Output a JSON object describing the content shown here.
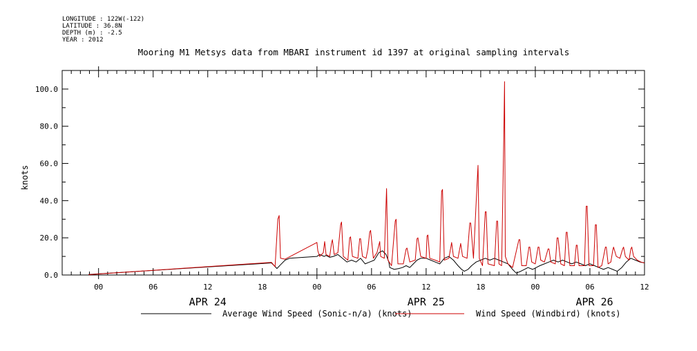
{
  "header": {
    "lines": [
      "LONGITUDE : 122W(-122)",
      "LATITUDE : 36.8N",
      "DEPTH (m) : -2.5",
      "YEAR : 2012"
    ],
    "title": "Mooring M1 Metsys data from MBARI instrument id 1397 at original sampling intervals"
  },
  "chart_data": {
    "type": "line",
    "title": "Mooring M1 Metsys data from MBARI instrument id 1397 at original sampling intervals",
    "xlabel": "",
    "ylabel": "knots",
    "x_unit": "hours from 00 APR 24 2012",
    "xlim": [
      -4,
      60
    ],
    "ylim": [
      0,
      110
    ],
    "y_ticks": [
      0.0,
      20.0,
      40.0,
      60.0,
      80.0,
      100.0
    ],
    "y_tick_labels": [
      "0.0",
      "20.0",
      "40.0",
      "60.0",
      "80.0",
      "100.0"
    ],
    "x_ticks": [
      0,
      6,
      12,
      18,
      24,
      30,
      36,
      42,
      48,
      54,
      60
    ],
    "x_tick_labels": [
      "00",
      "06",
      "12",
      "18",
      "00",
      "06",
      "12",
      "18",
      "00",
      "06",
      "12"
    ],
    "date_labels": [
      {
        "x": 12,
        "label": "APR 24"
      },
      {
        "x": 36,
        "label": "APR 25"
      },
      {
        "x": 54.5,
        "label": "APR 26"
      }
    ],
    "legend_position": "bottom",
    "series": [
      {
        "name": "Average Wind Speed (Sonic-n/a) (knots)",
        "color": "#000000",
        "points": [
          [
            -1.1,
            0.3
          ],
          [
            19,
            6.5
          ],
          [
            19.6,
            3.5
          ],
          [
            20,
            5.5
          ],
          [
            20.5,
            8
          ],
          [
            21,
            9
          ],
          [
            24,
            10
          ],
          [
            24.3,
            11
          ],
          [
            24.8,
            10
          ],
          [
            25,
            10.5
          ],
          [
            25.4,
            9.5
          ],
          [
            25.8,
            10
          ],
          [
            26.3,
            11
          ],
          [
            26.8,
            9
          ],
          [
            27.3,
            7
          ],
          [
            27.8,
            8
          ],
          [
            28.3,
            7
          ],
          [
            28.8,
            9
          ],
          [
            29.3,
            6
          ],
          [
            29.8,
            7
          ],
          [
            30.3,
            8
          ],
          [
            30.8,
            12
          ],
          [
            31.2,
            13
          ],
          [
            31.6,
            11
          ],
          [
            31.9,
            7
          ],
          [
            32,
            4
          ],
          [
            32.5,
            3
          ],
          [
            33,
            3.5
          ],
          [
            33.4,
            4
          ],
          [
            33.8,
            5
          ],
          [
            34.2,
            4
          ],
          [
            34.6,
            6
          ],
          [
            35,
            8
          ],
          [
            35.4,
            9
          ],
          [
            36,
            9
          ],
          [
            36.5,
            8
          ],
          [
            37,
            7
          ],
          [
            37.5,
            6
          ],
          [
            38,
            9
          ],
          [
            38.5,
            10
          ],
          [
            39,
            8
          ],
          [
            39.5,
            5
          ],
          [
            39.9,
            3
          ],
          [
            40.2,
            2
          ],
          [
            40.6,
            3
          ],
          [
            41,
            5
          ],
          [
            41.5,
            7
          ],
          [
            42,
            8
          ],
          [
            42.5,
            9
          ],
          [
            43,
            8
          ],
          [
            43.5,
            9
          ],
          [
            44,
            8
          ],
          [
            44.5,
            7
          ],
          [
            45,
            6
          ],
          [
            45.5,
            3
          ],
          [
            45.9,
            1
          ],
          [
            46.4,
            2
          ],
          [
            46.8,
            3
          ],
          [
            47.2,
            4
          ],
          [
            47.7,
            3
          ],
          [
            48.1,
            4
          ],
          [
            48.5,
            5
          ],
          [
            49,
            6
          ],
          [
            49.5,
            7
          ],
          [
            50,
            8
          ],
          [
            50.5,
            7
          ],
          [
            51,
            8
          ],
          [
            51.5,
            7
          ],
          [
            52,
            6
          ],
          [
            52.5,
            7
          ],
          [
            53,
            6
          ],
          [
            53.5,
            5
          ],
          [
            54,
            6
          ],
          [
            54.5,
            5
          ],
          [
            55,
            4
          ],
          [
            55.5,
            3
          ],
          [
            56,
            4
          ],
          [
            56.5,
            3
          ],
          [
            57,
            2
          ],
          [
            57.5,
            4
          ],
          [
            58,
            7
          ],
          [
            58.5,
            9
          ],
          [
            59,
            8
          ],
          [
            59.5,
            7
          ],
          [
            60,
            6.5
          ]
        ]
      },
      {
        "name": "Wind Speed (Windbird) (knots)",
        "color": "#cc0000",
        "points": [
          [
            -1.1,
            0.2
          ],
          [
            19,
            6.8
          ],
          [
            19.4,
            4.5
          ],
          [
            19.7,
            30
          ],
          [
            19.85,
            32
          ],
          [
            20,
            9
          ],
          [
            20.5,
            8.5
          ],
          [
            24,
            17.5
          ],
          [
            24.1,
            13
          ],
          [
            24.3,
            10
          ],
          [
            24.7,
            12
          ],
          [
            24.85,
            18
          ],
          [
            25,
            11
          ],
          [
            25.4,
            10
          ],
          [
            25.6,
            17
          ],
          [
            25.7,
            19
          ],
          [
            25.9,
            11
          ],
          [
            26.3,
            12
          ],
          [
            26.6,
            27
          ],
          [
            26.7,
            28.5
          ],
          [
            26.9,
            10
          ],
          [
            27.4,
            8
          ],
          [
            27.6,
            20
          ],
          [
            27.7,
            20.5
          ],
          [
            27.9,
            10
          ],
          [
            28.5,
            9
          ],
          [
            28.7,
            19.5
          ],
          [
            28.8,
            19.5
          ],
          [
            29,
            10
          ],
          [
            29.4,
            9
          ],
          [
            29.6,
            14
          ],
          [
            29.8,
            23
          ],
          [
            29.9,
            24
          ],
          [
            30.2,
            9
          ],
          [
            30.6,
            12
          ],
          [
            30.9,
            18
          ],
          [
            31,
            10
          ],
          [
            31.4,
            9
          ],
          [
            31.65,
            46.5
          ],
          [
            31.8,
            8
          ],
          [
            32.2,
            5
          ],
          [
            32.6,
            29
          ],
          [
            32.7,
            30
          ],
          [
            32.9,
            6
          ],
          [
            33.5,
            6
          ],
          [
            33.8,
            14
          ],
          [
            33.9,
            14.5
          ],
          [
            34.2,
            7
          ],
          [
            34.8,
            8
          ],
          [
            35,
            19.5
          ],
          [
            35.1,
            20
          ],
          [
            35.4,
            10
          ],
          [
            36,
            9
          ],
          [
            36.1,
            21
          ],
          [
            36.2,
            21.5
          ],
          [
            36.4,
            9
          ],
          [
            37,
            8
          ],
          [
            37.5,
            7
          ],
          [
            37.7,
            45
          ],
          [
            37.8,
            46
          ],
          [
            38,
            8
          ],
          [
            38.5,
            9
          ],
          [
            38.8,
            17.5
          ],
          [
            39,
            10
          ],
          [
            39.5,
            9
          ],
          [
            39.8,
            17
          ],
          [
            40,
            10
          ],
          [
            40.5,
            9
          ],
          [
            40.8,
            28
          ],
          [
            40.9,
            28
          ],
          [
            41.2,
            9
          ],
          [
            41.6,
            49
          ],
          [
            41.7,
            59
          ],
          [
            41.85,
            9
          ],
          [
            42.2,
            5
          ],
          [
            42.5,
            34
          ],
          [
            42.6,
            34
          ],
          [
            42.8,
            6
          ],
          [
            43.5,
            5
          ],
          [
            43.75,
            29
          ],
          [
            43.85,
            29
          ],
          [
            44,
            6
          ],
          [
            44.3,
            5
          ],
          [
            44.55,
            79
          ],
          [
            44.62,
            104
          ],
          [
            44.7,
            10
          ],
          [
            45,
            6
          ],
          [
            45.5,
            4
          ],
          [
            46.2,
            19
          ],
          [
            46.3,
            19
          ],
          [
            46.5,
            5
          ],
          [
            47,
            5
          ],
          [
            47.3,
            15
          ],
          [
            47.4,
            15
          ],
          [
            47.6,
            7
          ],
          [
            48,
            6
          ],
          [
            48.3,
            15
          ],
          [
            48.4,
            15
          ],
          [
            48.6,
            8
          ],
          [
            49,
            7
          ],
          [
            49.4,
            14
          ],
          [
            49.5,
            14
          ],
          [
            49.7,
            7
          ],
          [
            50.2,
            6
          ],
          [
            50.4,
            20
          ],
          [
            50.5,
            20
          ],
          [
            50.8,
            6
          ],
          [
            51.2,
            5
          ],
          [
            51.4,
            23
          ],
          [
            51.5,
            23
          ],
          [
            51.8,
            5
          ],
          [
            52.3,
            5
          ],
          [
            52.5,
            16
          ],
          [
            52.6,
            16
          ],
          [
            52.8,
            5
          ],
          [
            53.4,
            5
          ],
          [
            53.6,
            37
          ],
          [
            53.7,
            37
          ],
          [
            53.9,
            5
          ],
          [
            54.4,
            5
          ],
          [
            54.6,
            27
          ],
          [
            54.7,
            27
          ],
          [
            54.9,
            4
          ],
          [
            55.3,
            5
          ],
          [
            55.7,
            15
          ],
          [
            55.8,
            15
          ],
          [
            56,
            6
          ],
          [
            56.3,
            7
          ],
          [
            56.5,
            13
          ],
          [
            56.6,
            15
          ],
          [
            56.9,
            10
          ],
          [
            57.3,
            9
          ],
          [
            57.6,
            14
          ],
          [
            57.7,
            15
          ],
          [
            57.9,
            10
          ],
          [
            58.3,
            8
          ],
          [
            58.5,
            14
          ],
          [
            58.6,
            15
          ],
          [
            58.8,
            10
          ],
          [
            59.2,
            8
          ],
          [
            59.6,
            7
          ],
          [
            60,
            6.5
          ]
        ]
      }
    ]
  }
}
